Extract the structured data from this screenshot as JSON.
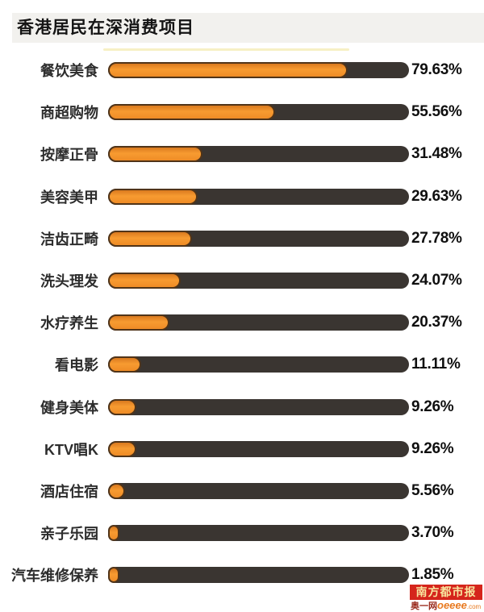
{
  "title": "香港居民在深消费项目",
  "chart_data": {
    "type": "bar",
    "orientation": "horizontal",
    "title": "香港居民在深消费项目",
    "categories": [
      "餐饮美食",
      "商超购物",
      "按摩正骨",
      "美容美甲",
      "洁齿正畸",
      "洗头理发",
      "水疗养生",
      "看电影",
      "健身美体",
      "KTV唱K",
      "酒店住宿",
      "亲子乐园",
      "汽车维修保养"
    ],
    "values": [
      79.63,
      55.56,
      31.48,
      29.63,
      27.78,
      24.07,
      20.37,
      11.11,
      9.26,
      9.26,
      5.56,
      3.7,
      1.85
    ],
    "value_labels": [
      "79.63%",
      "55.56%",
      "31.48%",
      "29.63%",
      "27.78%",
      "24.07%",
      "20.37%",
      "11.11%",
      "9.26%",
      "9.26%",
      "5.56%",
      "3.70%",
      "1.85%"
    ],
    "xlim": [
      0,
      100
    ],
    "grid": false,
    "legend": false,
    "bar_color": "#f1902a",
    "bar_border_color": "#503419",
    "track_color": "#3a3531"
  },
  "footer": {
    "newspaper_logo_text": "南方都市报",
    "newspaper_logo_bg": "#d5251c",
    "site_prefix": "奥一网",
    "site_name": "oeeee",
    "site_tld": ".com"
  }
}
